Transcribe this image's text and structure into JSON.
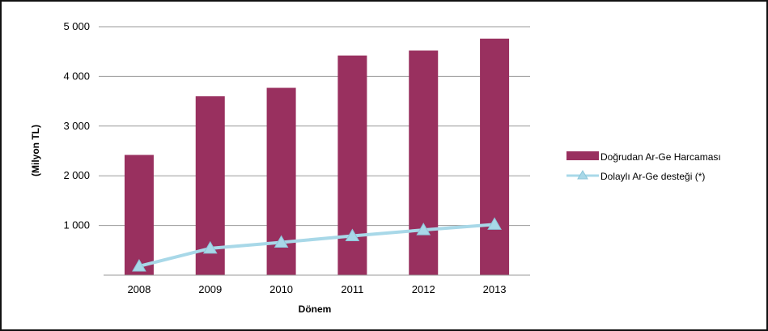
{
  "chart_data": {
    "type": "bar",
    "categories": [
      "2008",
      "2009",
      "2010",
      "2011",
      "2012",
      "2013"
    ],
    "series": [
      {
        "name": "Doğrudan Ar-Ge Harcaması",
        "type": "bar",
        "color": "#99305f",
        "values": [
          2420,
          3600,
          3770,
          4420,
          4520,
          4760
        ]
      },
      {
        "name": "Dolaylı Ar-Ge desteği (*)",
        "type": "line",
        "color": "#a8d8e8",
        "values": [
          180,
          540,
          660,
          790,
          910,
          1020
        ]
      }
    ],
    "xlabel": "Dönem",
    "ylabel": "(Milyon TL)",
    "ylim": [
      0,
      5000
    ],
    "yticks": [
      1000,
      2000,
      3000,
      4000,
      5000
    ],
    "ytick_labels": [
      "1 000",
      "2 000",
      "3 000",
      "4 000",
      "5 000"
    ],
    "grid": true,
    "legend_position": "right"
  }
}
